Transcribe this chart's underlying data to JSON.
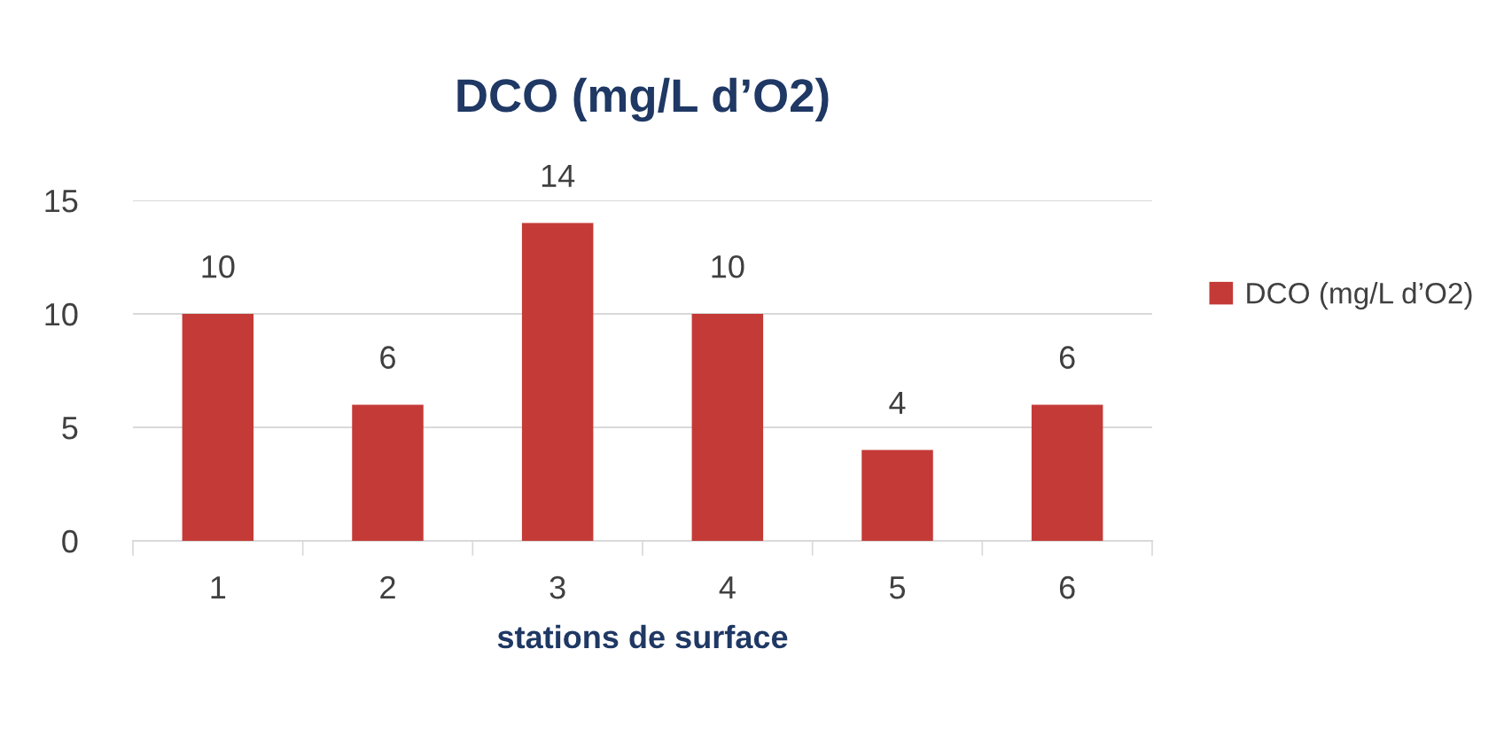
{
  "chart_data": {
    "type": "bar",
    "title": "DCO (mg/L d’O2)",
    "xlabel": "stations de surface",
    "categories": [
      "1",
      "2",
      "3",
      "4",
      "5",
      "6"
    ],
    "series": [
      {
        "name": "DCO (mg/L d’O2)",
        "color": "#c43a36",
        "values": [
          10,
          6,
          14,
          10,
          4,
          6
        ]
      }
    ],
    "ylim": [
      0,
      15
    ],
    "yticks": [
      0,
      5,
      10,
      15
    ],
    "grid": "y",
    "legend": "right",
    "data_labels": true
  }
}
